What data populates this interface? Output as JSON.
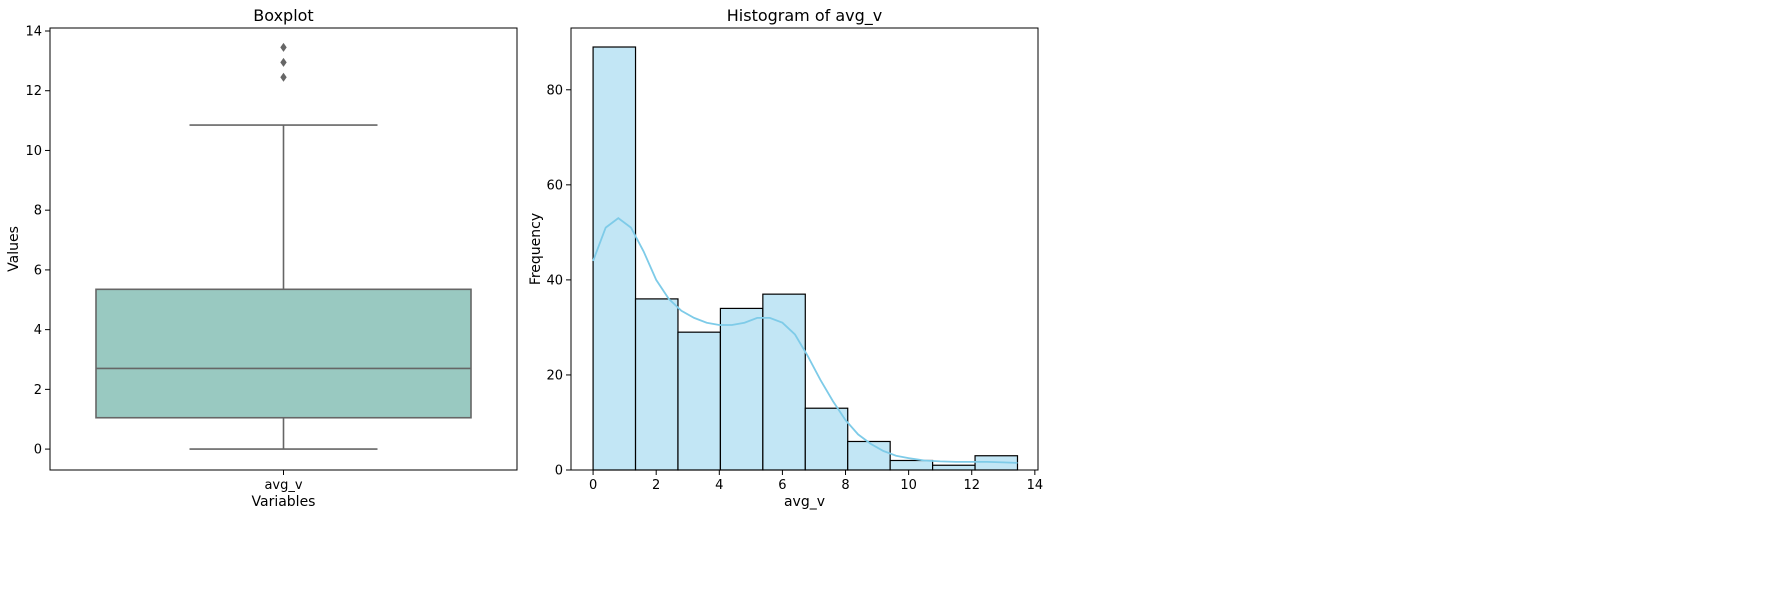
{
  "chart_data": [
    {
      "type": "box",
      "title": "Boxplot",
      "xlabel": "Variables",
      "ylabel": "Values",
      "categories": [
        "avg_v"
      ],
      "ylim": [
        -0.7,
        14.1
      ],
      "yticks": [
        0,
        2,
        4,
        6,
        8,
        10,
        12,
        14
      ],
      "box": {
        "min": 0,
        "q1": 1.05,
        "median": 2.7,
        "q3": 5.35,
        "max": 10.85,
        "outliers": [
          12.45,
          12.95,
          13.45
        ]
      },
      "colors": {
        "box": "#99c9c1",
        "line": "#666666",
        "outlier": "#666666"
      }
    },
    {
      "type": "histogram",
      "title": "Histogram of avg_v",
      "xlabel": "avg_v",
      "ylabel": "Frequency",
      "xlim": [
        -0.7,
        14.1
      ],
      "ylim": [
        0,
        93
      ],
      "xticks": [
        0,
        2,
        4,
        6,
        8,
        10,
        12,
        14
      ],
      "yticks": [
        0,
        20,
        40,
        60,
        80
      ],
      "bin_edges": [
        0,
        1.345,
        2.69,
        4.035,
        5.38,
        6.725,
        8.07,
        9.415,
        10.76,
        12.105,
        13.45
      ],
      "counts": [
        89,
        36,
        29,
        34,
        37,
        13,
        6,
        2,
        1,
        3
      ],
      "kde": {
        "x": [
          0,
          0.4,
          0.8,
          1.2,
          1.6,
          2.0,
          2.4,
          2.8,
          3.2,
          3.6,
          4.0,
          4.4,
          4.8,
          5.2,
          5.6,
          6.0,
          6.4,
          6.8,
          7.2,
          7.6,
          8.0,
          8.4,
          8.8,
          9.2,
          9.6,
          10.0,
          10.5,
          11.0,
          11.5,
          12.0,
          12.5,
          13.0,
          13.45
        ],
        "y": [
          44,
          51,
          53,
          51,
          46,
          40,
          36,
          33.5,
          32,
          31,
          30.5,
          30.5,
          31,
          32,
          32,
          31,
          28.5,
          24,
          19,
          14.5,
          10.5,
          7.5,
          5.5,
          4,
          3,
          2.5,
          2,
          1.8,
          1.7,
          1.7,
          1.7,
          1.6,
          1.5
        ]
      },
      "colors": {
        "bar": "#c2e6f5",
        "edge": "#000000",
        "kde": "#7ecbe8"
      }
    }
  ]
}
